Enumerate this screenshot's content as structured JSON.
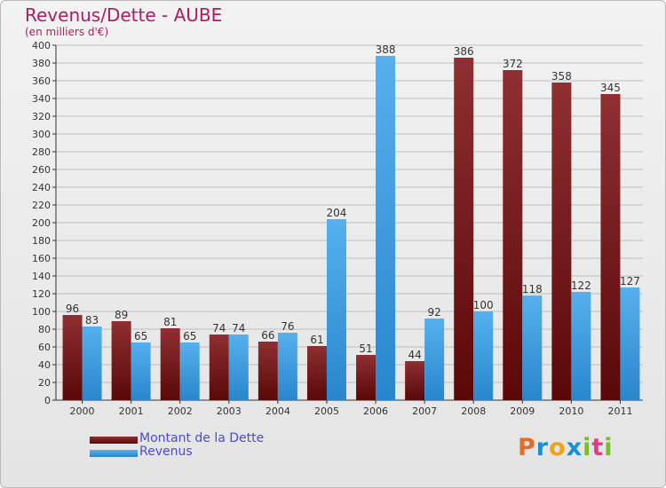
{
  "title": "Revenus/Dette - AUBE",
  "subtitle": "(en milliers d'€)",
  "logo": {
    "text": "Proxiti",
    "colors": [
      "#e36c2a",
      "#1b8fd6",
      "#f0a21b",
      "#1b8fd6",
      "#7bbd26",
      "#e33b8c",
      "#7bbd26"
    ]
  },
  "colors": {
    "dette": "#7a1c22",
    "revenus": "#3a9be0",
    "axis": "#333333",
    "grid": "#bdbdbd"
  },
  "chart_data": {
    "type": "bar",
    "title": "Revenus/Dette - AUBE",
    "ylabel": "(en milliers d'€)",
    "xlabel": "",
    "categories": [
      "2000",
      "2001",
      "2002",
      "2003",
      "2004",
      "2005",
      "2006",
      "2007",
      "2008",
      "2009",
      "2010",
      "2011"
    ],
    "series": [
      {
        "name": "Montant de la Dette",
        "values": [
          96,
          89,
          81,
          74,
          66,
          61,
          51,
          44,
          386,
          372,
          358,
          345
        ]
      },
      {
        "name": "Revenus",
        "values": [
          83,
          65,
          65,
          74,
          76,
          204,
          388,
          92,
          100,
          118,
          122,
          127
        ]
      }
    ],
    "ylim": [
      0,
      400
    ],
    "yticks": [
      0,
      20,
      40,
      60,
      80,
      100,
      120,
      140,
      160,
      180,
      200,
      220,
      240,
      260,
      280,
      300,
      320,
      340,
      360,
      380,
      400
    ],
    "grid": true,
    "legend": "bottom-left"
  }
}
